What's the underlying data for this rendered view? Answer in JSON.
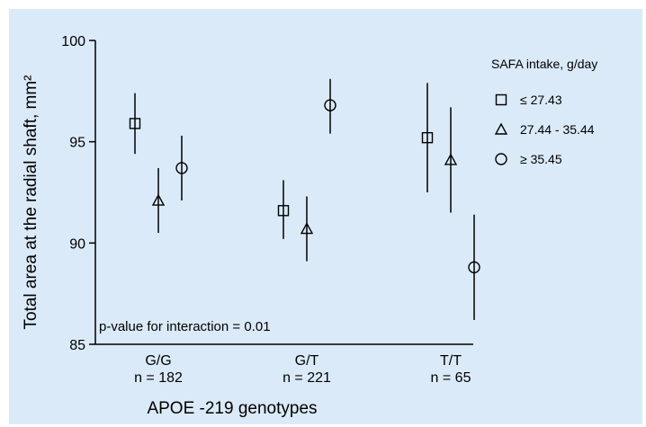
{
  "chart_data": {
    "type": "scatter",
    "title": "",
    "xlabel": "APOE -219 genotypes",
    "ylabel": "Total area at the radial shaft, mm²",
    "ylim": [
      85,
      100
    ],
    "yticks": [
      85,
      90,
      95,
      100
    ],
    "grid": false,
    "legend_position": "top-right",
    "legend_title": "SAFA intake, g/day",
    "categories": [
      {
        "label": "G/G",
        "n_label": "n = 182"
      },
      {
        "label": "G/T",
        "n_label": "n = 221"
      },
      {
        "label": "T/T",
        "n_label": "n = 65"
      }
    ],
    "series": [
      {
        "name": "≤ 27.43",
        "marker": "square-icon",
        "values": [
          95.9,
          91.6,
          95.2
        ],
        "lower": [
          94.4,
          90.2,
          92.5
        ],
        "upper": [
          97.4,
          93.1,
          97.9
        ]
      },
      {
        "name": "27.44 - 35.44",
        "marker": "triangle-icon",
        "values": [
          92.1,
          90.7,
          94.1
        ],
        "lower": [
          90.5,
          89.1,
          91.5
        ],
        "upper": [
          93.7,
          92.3,
          96.7
        ]
      },
      {
        "name": "≥ 35.45",
        "marker": "circle-icon",
        "values": [
          93.7,
          96.8,
          88.8
        ],
        "lower": [
          92.1,
          95.4,
          86.2
        ],
        "upper": [
          95.3,
          98.1,
          91.4
        ]
      }
    ],
    "annotation": "p-value for interaction = 0.01"
  },
  "colors": {
    "background": "#dbeaf8",
    "axis": "#000000",
    "marker_stroke": "#000000"
  }
}
